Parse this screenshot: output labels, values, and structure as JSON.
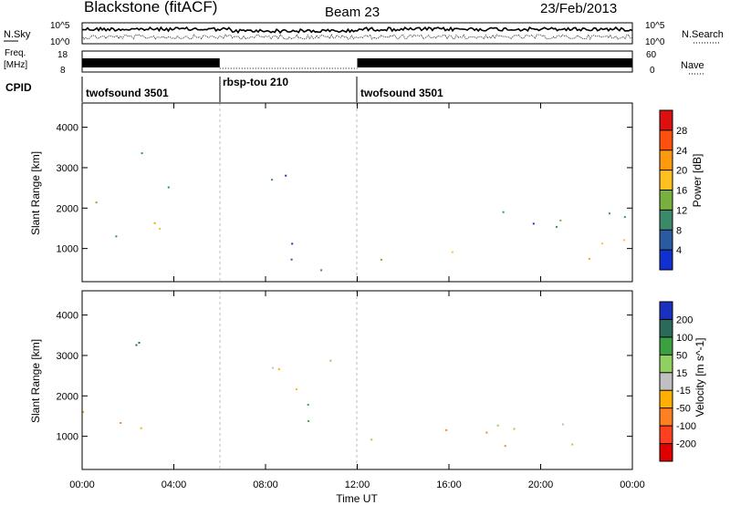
{
  "header": {
    "station": "Blackstone (fitACF)",
    "beam": "Beam 23",
    "date": "23/Feb/2013"
  },
  "top_panels": {
    "nsky_label": "N.Sky",
    "nsearch_label": "N.Search",
    "freq_label_line1": "Freq.",
    "freq_label_line2": "[MHz]",
    "nave_label": "Nave",
    "cpid_label": "CPID",
    "noise_left_ticks": [
      "10^5",
      "10^0"
    ],
    "noise_right_ticks": [
      "10^5",
      "10^0"
    ],
    "freq_left_ticks": [
      "18",
      "8"
    ],
    "nave_right_ticks": [
      "60",
      "0"
    ]
  },
  "cpid_segments": [
    {
      "label": "twofsound 3501",
      "start_hour": 0,
      "end_hour": 6
    },
    {
      "label": "rbsp-tou 210",
      "start_hour": 6,
      "end_hour": 12
    },
    {
      "label": "twofsound 3501",
      "start_hour": 12,
      "end_hour": 24
    }
  ],
  "power_colorbar": {
    "label": "Power [dB]",
    "ticks": [
      "28",
      "24",
      "20",
      "16",
      "12",
      "8",
      "4"
    ],
    "colors": [
      "#dd1010",
      "#ff5010",
      "#ff9a10",
      "#ffc020",
      "#78b040",
      "#3a8a6a",
      "#2a5aa0",
      "#1030d0"
    ]
  },
  "velocity_colorbar": {
    "label": "Velocity [m s^-1]",
    "ticks": [
      "200",
      "100",
      "50",
      "15",
      "-15",
      "-50",
      "-100",
      "-200"
    ],
    "colors": [
      "#1a30c0",
      "#2a6a5a",
      "#3aa040",
      "#90d060",
      "#c0c0c0",
      "#ffb000",
      "#ff8020",
      "#ff4020",
      "#e00000"
    ]
  },
  "chart_data": {
    "type": "heatmap",
    "xlabel": "Time UT",
    "x_ticks": [
      "00:00",
      "04:00",
      "08:00",
      "12:00",
      "16:00",
      "20:00",
      "00:00"
    ],
    "xlim_hours": [
      0,
      24
    ],
    "ylabel": "Slant Range [km]",
    "y_ticks": [
      1000,
      2000,
      3000,
      4000
    ],
    "ylim_km": [
      180,
      4600
    ],
    "panels": [
      {
        "name": "Power",
        "scatter_regions": [
          {
            "t": [
              0,
              2
            ],
            "r": [
              1100,
              2200
            ],
            "power_db": 14
          },
          {
            "t": [
              0,
              3.5
            ],
            "r": [
              1200,
              1700
            ],
            "power_db": 22
          },
          {
            "t": [
              2,
              5.5
            ],
            "r": [
              2400,
              3400
            ],
            "power_db": 10
          },
          {
            "t": [
              6.5,
              9.5
            ],
            "r": [
              2300,
              3000
            ],
            "power_db": 12
          },
          {
            "t": [
              7,
              11
            ],
            "r": [
              400,
              1200
            ],
            "power_db": 10
          },
          {
            "t": [
              12,
              24
            ],
            "r": [
              700,
              1300
            ],
            "power_db": 20
          },
          {
            "t": [
              12,
              24
            ],
            "r": [
              1300,
              2000
            ],
            "power_db": 8
          }
        ]
      },
      {
        "name": "Velocity",
        "scatter_regions": [
          {
            "t": [
              0,
              3
            ],
            "r": [
              1100,
              2200
            ],
            "velocity_ms": -20
          },
          {
            "t": [
              2,
              4
            ],
            "r": [
              3000,
              3700
            ],
            "velocity_ms": 150
          },
          {
            "t": [
              6.5,
              9.5
            ],
            "r": [
              2300,
              3000
            ],
            "velocity_ms": 0
          },
          {
            "t": [
              9,
              12
            ],
            "r": [
              1300,
              3000
            ],
            "velocity_ms": 40
          },
          {
            "t": [
              12,
              24
            ],
            "r": [
              700,
              1400
            ],
            "velocity_ms": 0
          }
        ]
      }
    ]
  }
}
